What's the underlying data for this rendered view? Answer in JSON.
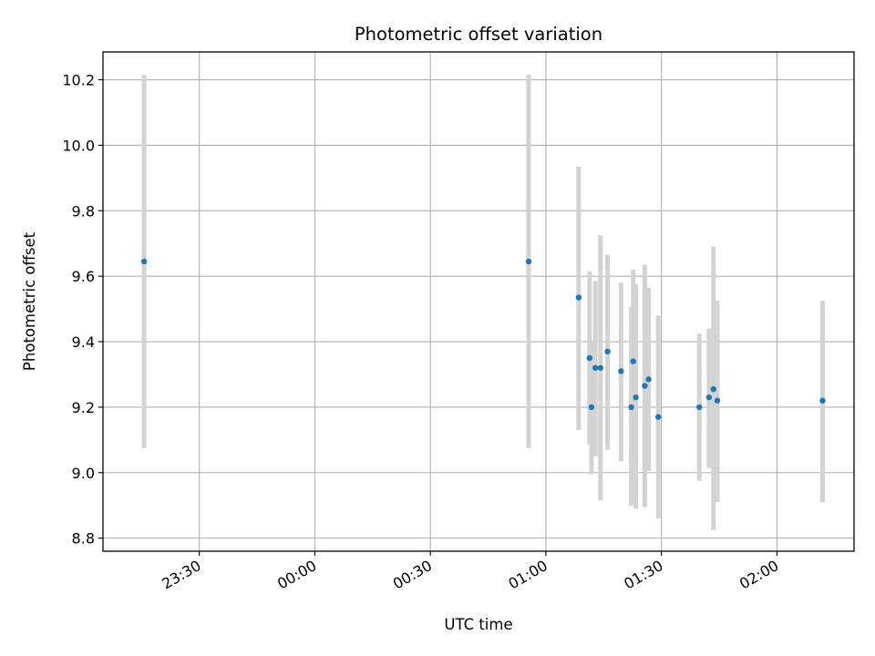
{
  "chart_data": {
    "type": "scatter",
    "title": "Photometric offset variation",
    "xlabel": "UTC time",
    "ylabel": "Photometric offset",
    "x_unit": "UTC",
    "xlim": [
      "23:05",
      "02:20"
    ],
    "ylim": [
      8.76,
      10.285
    ],
    "x_ticks": [
      "23:30",
      "00:00",
      "00:30",
      "01:00",
      "01:30",
      "02:00"
    ],
    "y_ticks": [
      8.8,
      9.0,
      9.2,
      9.4,
      9.6,
      9.8,
      10.0,
      10.2
    ],
    "y_tick_labels": [
      "8.8",
      "9.0",
      "9.2",
      "9.4",
      "9.6",
      "9.8",
      "10.0",
      "10.2"
    ],
    "grid": true,
    "marker_color": "#1f77b4",
    "errorbar_color": "#d3d3d3",
    "series": [
      {
        "points": [
          {
            "x": "23:15:40",
            "y": 9.645,
            "ylow": 9.075,
            "yhigh": 10.215
          },
          {
            "x": "00:55:30",
            "y": 9.645,
            "ylow": 9.075,
            "yhigh": 10.215
          },
          {
            "x": "01:08:30",
            "y": 9.535,
            "ylow": 9.13,
            "yhigh": 9.935
          },
          {
            "x": "01:11:20",
            "y": 9.35,
            "ylow": 9.085,
            "yhigh": 9.615
          },
          {
            "x": "01:11:50",
            "y": 9.2,
            "ylow": 8.995,
            "yhigh": 9.405
          },
          {
            "x": "01:12:50",
            "y": 9.32,
            "ylow": 9.05,
            "yhigh": 9.585
          },
          {
            "x": "01:14:10",
            "y": 9.32,
            "ylow": 8.915,
            "yhigh": 9.725
          },
          {
            "x": "01:16:00",
            "y": 9.37,
            "ylow": 9.07,
            "yhigh": 9.665
          },
          {
            "x": "01:19:30",
            "y": 9.31,
            "ylow": 9.035,
            "yhigh": 9.58
          },
          {
            "x": "01:22:10",
            "y": 9.2,
            "ylow": 8.9,
            "yhigh": 9.505
          },
          {
            "x": "01:22:40",
            "y": 9.34,
            "ylow": 9.065,
            "yhigh": 9.62
          },
          {
            "x": "01:23:20",
            "y": 9.23,
            "ylow": 8.89,
            "yhigh": 9.575
          },
          {
            "x": "01:25:40",
            "y": 9.265,
            "ylow": 8.895,
            "yhigh": 9.635
          },
          {
            "x": "01:26:40",
            "y": 9.285,
            "ylow": 9.005,
            "yhigh": 9.565
          },
          {
            "x": "01:29:10",
            "y": 9.17,
            "ylow": 8.86,
            "yhigh": 9.48
          },
          {
            "x": "01:39:50",
            "y": 9.2,
            "ylow": 8.975,
            "yhigh": 9.425
          },
          {
            "x": "01:42:20",
            "y": 9.23,
            "ylow": 9.015,
            "yhigh": 9.44
          },
          {
            "x": "01:43:30",
            "y": 9.255,
            "ylow": 8.825,
            "yhigh": 9.69
          },
          {
            "x": "01:44:30",
            "y": 9.22,
            "ylow": 8.91,
            "yhigh": 9.525
          },
          {
            "x": "02:11:50",
            "y": 9.22,
            "ylow": 8.91,
            "yhigh": 9.525
          }
        ]
      }
    ]
  }
}
